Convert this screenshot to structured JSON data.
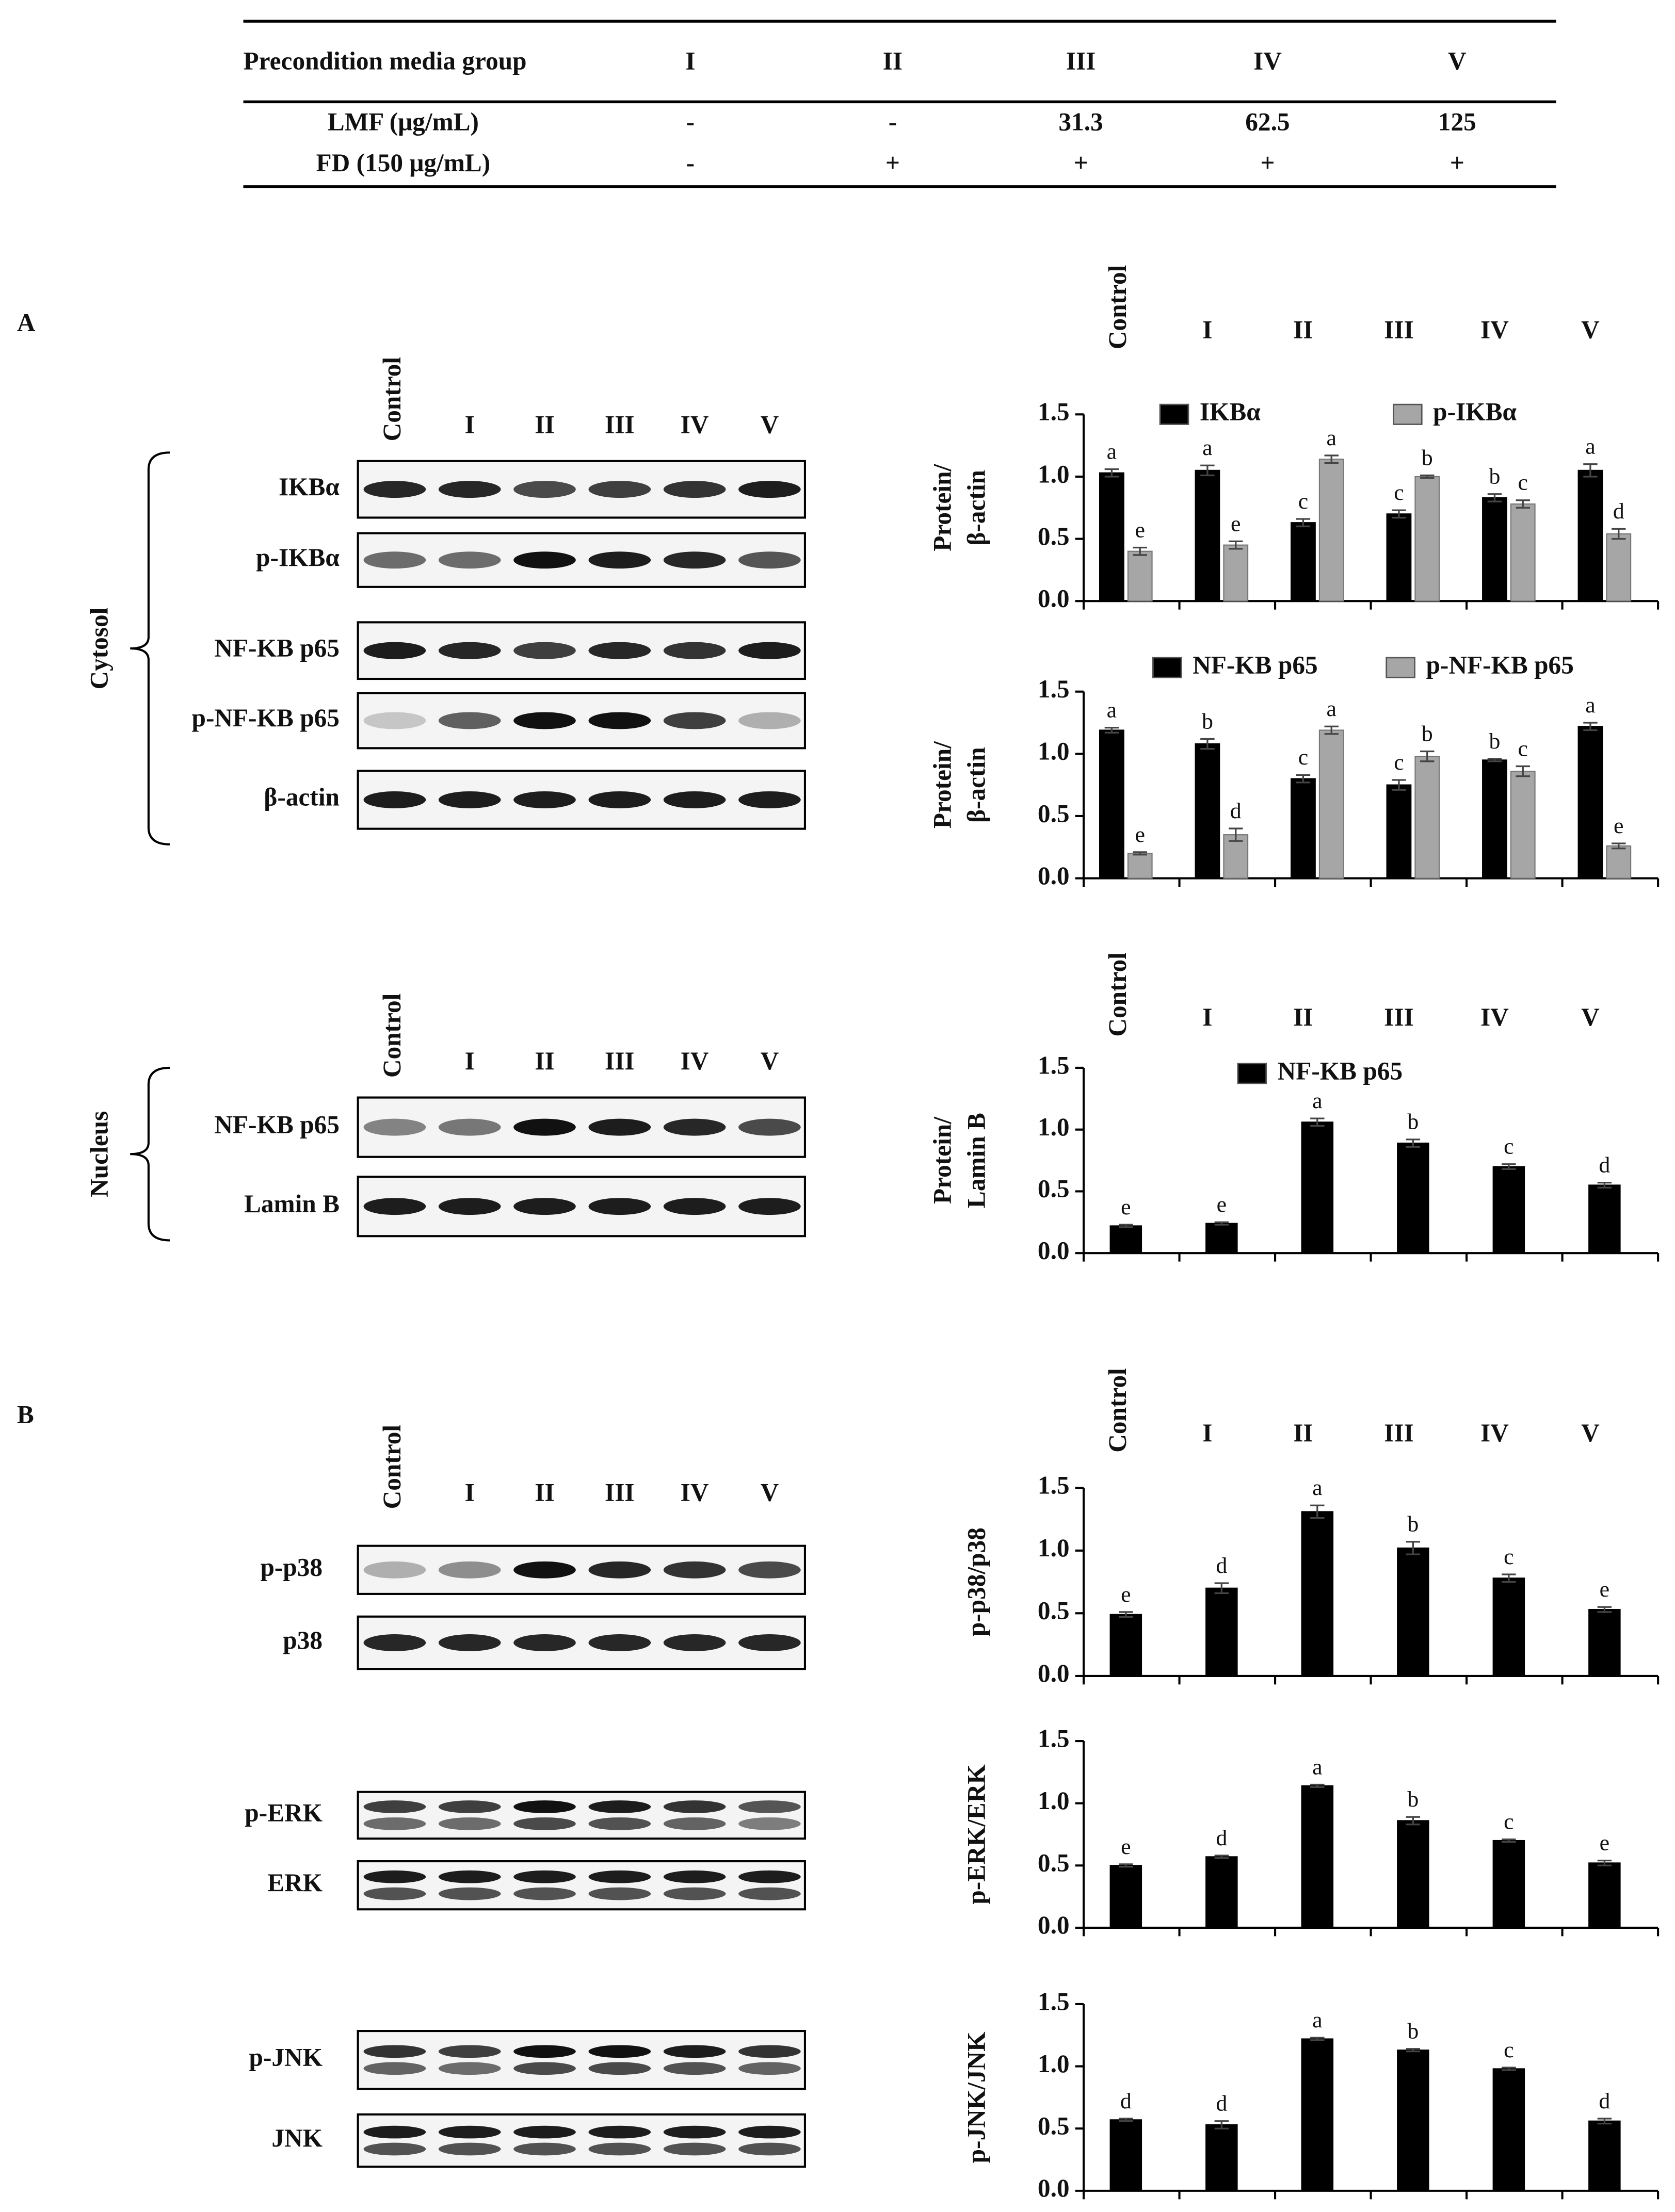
{
  "table": {
    "header": [
      "Precondition media group",
      "I",
      "II",
      "III",
      "IV",
      "V"
    ],
    "rows": [
      [
        "LMF  (μg/mL)",
        "-",
        "-",
        "31.3",
        "62.5",
        "125"
      ],
      [
        "FD (150 μg/mL)",
        "-",
        "+",
        "+",
        "+",
        "+"
      ]
    ]
  },
  "panel_labels": [
    "A",
    "B"
  ],
  "blots": [
    {
      "group": "Cytosol",
      "lanes": [
        "Control",
        "I",
        "II",
        "III",
        "IV",
        "V"
      ],
      "rows": [
        "IKBα",
        "p-IKBα",
        "NF-KB p65",
        "p-NF-KB p65",
        "β-actin"
      ]
    },
    {
      "group": "Nucleus",
      "lanes": [
        "Control",
        "I",
        "II",
        "III",
        "IV",
        "V"
      ],
      "rows": [
        "NF-KB p65",
        "Lamin B"
      ]
    },
    {
      "lanes": [
        "Control",
        "I",
        "II",
        "III",
        "IV",
        "V"
      ],
      "rows": [
        "p-p38",
        "p38",
        "p-ERK",
        "ERK",
        "p-JNK",
        "JNK"
      ]
    }
  ],
  "chart_data": [
    {
      "type": "bar",
      "categories": [
        "Control",
        "I",
        "II",
        "III",
        "IV",
        "V"
      ],
      "ylabel": [
        "Protein/",
        "β-actin"
      ],
      "ylim": [
        0,
        1.5
      ],
      "yticks": [
        {
          "value": 0,
          "label": "0.0"
        },
        0.5,
        {
          "value": 1,
          "label": "1.0"
        },
        1.5
      ],
      "series": [
        {
          "name": "IKBα",
          "color": "#000000",
          "values": [
            1.03,
            1.05,
            0.63,
            0.7,
            0.83,
            1.05
          ],
          "errors": [
            0.03,
            0.04,
            0.03,
            0.03,
            0.03,
            0.05
          ],
          "letters": [
            "a",
            "a",
            "c",
            "c",
            "b",
            "a"
          ]
        },
        {
          "name": "p-IKBα",
          "color": "#a6a6a6",
          "values": [
            0.4,
            0.45,
            1.14,
            1.0,
            0.78,
            0.54
          ],
          "errors": [
            0.03,
            0.03,
            0.03,
            0.01,
            0.03,
            0.04
          ],
          "letters": [
            "e",
            "e",
            "a",
            "b",
            "c",
            "d"
          ]
        }
      ]
    },
    {
      "type": "bar",
      "categories": [
        null,
        null,
        null,
        null,
        null,
        null
      ],
      "ylabel": [
        "Protein/",
        "β-actin"
      ],
      "ylim": [
        0,
        1.5
      ],
      "yticks": [
        {
          "value": 0,
          "label": "0.0"
        },
        0.5,
        {
          "value": 1,
          "label": "1.0"
        },
        1.5
      ],
      "series": [
        {
          "name": "NF-KB p65",
          "color": "#000000",
          "values": [
            1.19,
            1.08,
            0.8,
            0.75,
            0.95,
            1.22
          ],
          "errors": [
            0.02,
            0.04,
            0.03,
            0.04,
            0.01,
            0.03
          ],
          "letters": [
            "a",
            "b",
            "c",
            "c",
            "b",
            "a"
          ]
        },
        {
          "name": "p-NF-KB p65",
          "color": "#a6a6a6",
          "values": [
            0.2,
            0.35,
            1.19,
            0.98,
            0.86,
            0.26
          ],
          "errors": [
            0.01,
            0.05,
            0.03,
            0.04,
            0.04,
            0.02
          ],
          "letters": [
            "e",
            "d",
            "a",
            "b",
            "c",
            "e"
          ]
        }
      ]
    },
    {
      "type": "bar",
      "categories": [
        "Control",
        "I",
        "II",
        "III",
        "IV",
        "V"
      ],
      "ylabel": [
        "Protein/",
        "Lamin B"
      ],
      "ylim": [
        0,
        1.5
      ],
      "yticks": [
        {
          "value": 0,
          "label": "0.0"
        },
        0.5,
        {
          "value": 1,
          "label": "1.0"
        },
        1.5
      ],
      "series": [
        {
          "name": "NF-KB p65",
          "color": "#000000",
          "values": [
            0.22,
            0.24,
            1.06,
            0.89,
            0.7,
            0.55
          ],
          "errors": [
            0.01,
            0.01,
            0.03,
            0.03,
            0.02,
            0.02
          ],
          "letters": [
            "e",
            "e",
            "a",
            "b",
            "c",
            "d"
          ]
        }
      ]
    },
    {
      "type": "bar",
      "categories": [
        "Control",
        "I",
        "II",
        "III",
        "IV",
        "V"
      ],
      "ylabel": [
        "p-p38/p38"
      ],
      "ylim": [
        0,
        1.5
      ],
      "yticks": [
        {
          "value": 0,
          "label": "0.0"
        },
        0.5,
        {
          "value": 1,
          "label": "1.0"
        },
        1.5
      ],
      "series": [
        {
          "color": "#000000",
          "values": [
            0.49,
            0.7,
            1.31,
            1.02,
            0.78,
            0.53
          ],
          "errors": [
            0.02,
            0.04,
            0.05,
            0.05,
            0.03,
            0.02
          ],
          "letters": [
            "e",
            "d",
            "a",
            "b",
            "c",
            "e"
          ]
        }
      ]
    },
    {
      "type": "bar",
      "categories": [
        null,
        null,
        null,
        null,
        null,
        null
      ],
      "ylabel": [
        "p-ERK/ERK"
      ],
      "ylim": [
        0,
        1.5
      ],
      "yticks": [
        {
          "value": 0,
          "label": "0.0"
        },
        0.5,
        {
          "value": 1,
          "label": "1.0"
        },
        1.5
      ],
      "series": [
        {
          "color": "#000000",
          "values": [
            0.5,
            0.57,
            1.14,
            0.86,
            0.7,
            0.52
          ],
          "errors": [
            0.01,
            0.01,
            0.01,
            0.03,
            0.01,
            0.02
          ],
          "letters": [
            "e",
            "d",
            "a",
            "b",
            "c",
            "e"
          ]
        }
      ]
    },
    {
      "type": "bar",
      "categories": [
        null,
        null,
        null,
        null,
        null,
        null
      ],
      "ylabel": [
        "p-JNK/JNK"
      ],
      "ylim": [
        0,
        1.5
      ],
      "yticks": [
        {
          "value": 0,
          "label": "0.0"
        },
        0.5,
        {
          "value": 1,
          "label": "1.0"
        },
        1.5
      ],
      "series": [
        {
          "color": "#000000",
          "values": [
            0.57,
            0.53,
            1.22,
            1.13,
            0.98,
            0.56
          ],
          "errors": [
            0.01,
            0.03,
            0.01,
            0.01,
            0.01,
            0.02
          ],
          "letters": [
            "d",
            "d",
            "a",
            "b",
            "c",
            "d"
          ]
        }
      ]
    }
  ]
}
